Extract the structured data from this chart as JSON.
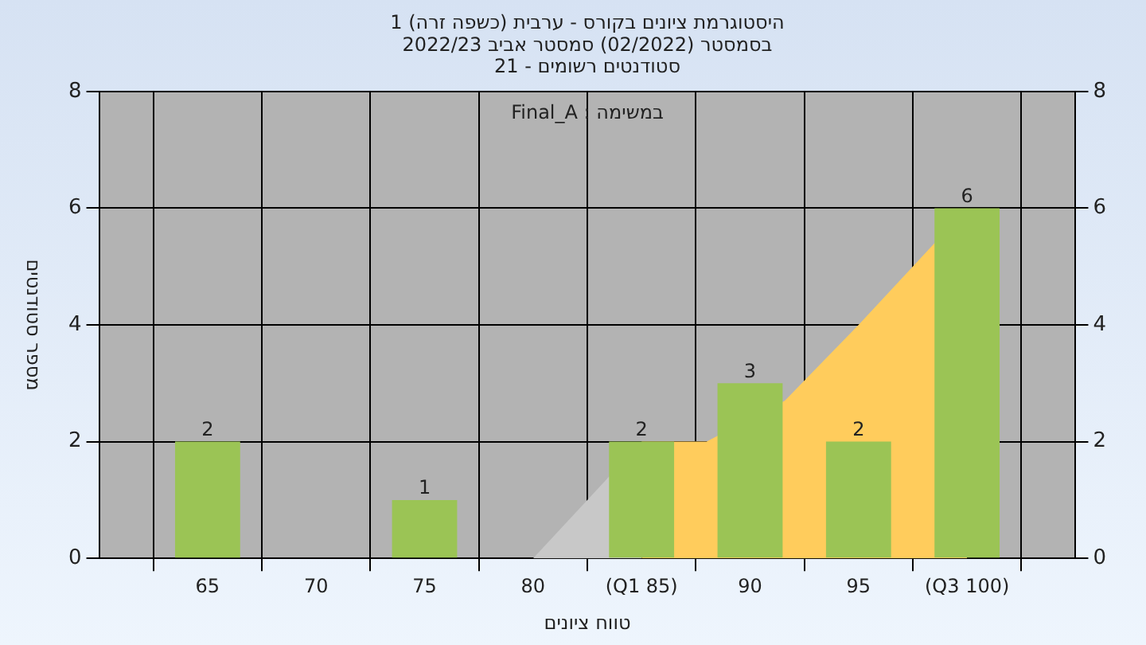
{
  "chart_data": {
    "type": "bar",
    "title": "היסטוגרמת ציונים בקורס - ערבית (כשפה זרה) 1\nבסמסטר (02/2022) סמסטר אביב 2022/23\nסטודנטים רשומים - 21",
    "xlabel": "טווח ציונים",
    "ylabel": "מספר סטודנטים",
    "annotations": [
      "במשימה : Final_A"
    ],
    "x": [
      65,
      70,
      75,
      80,
      85,
      90,
      95,
      100
    ],
    "xlim": [
      60,
      105
    ],
    "xticks": [
      65,
      70,
      75,
      80,
      {
        "value": 85,
        "label": "(Q1 85)"
      },
      90,
      95,
      {
        "value": 100,
        "label": "(Q3 100)"
      }
    ],
    "ylim": [
      0,
      8
    ],
    "yticks": [
      0,
      2,
      4,
      6,
      8
    ],
    "y2lim": [
      0,
      8
    ],
    "y2ticks": [
      0,
      2,
      4,
      6,
      8
    ],
    "series": [
      {
        "type": "area",
        "color": "#c8c8c8",
        "x": [
          80,
          85
        ],
        "values": [
          0,
          2
        ]
      },
      {
        "type": "area",
        "color": "#ffcc5c",
        "x": [
          85,
          88,
          91.6,
          95,
          100
        ],
        "values": [
          2,
          2,
          2.7,
          4,
          6
        ]
      },
      {
        "color": "#9bc455",
        "values": [
          2,
          null,
          1,
          null,
          2,
          3,
          2,
          6
        ],
        "value_labels": [
          "2",
          null,
          "1",
          null,
          "2",
          "3",
          "2",
          "6"
        ]
      }
    ],
    "grid": true
  }
}
